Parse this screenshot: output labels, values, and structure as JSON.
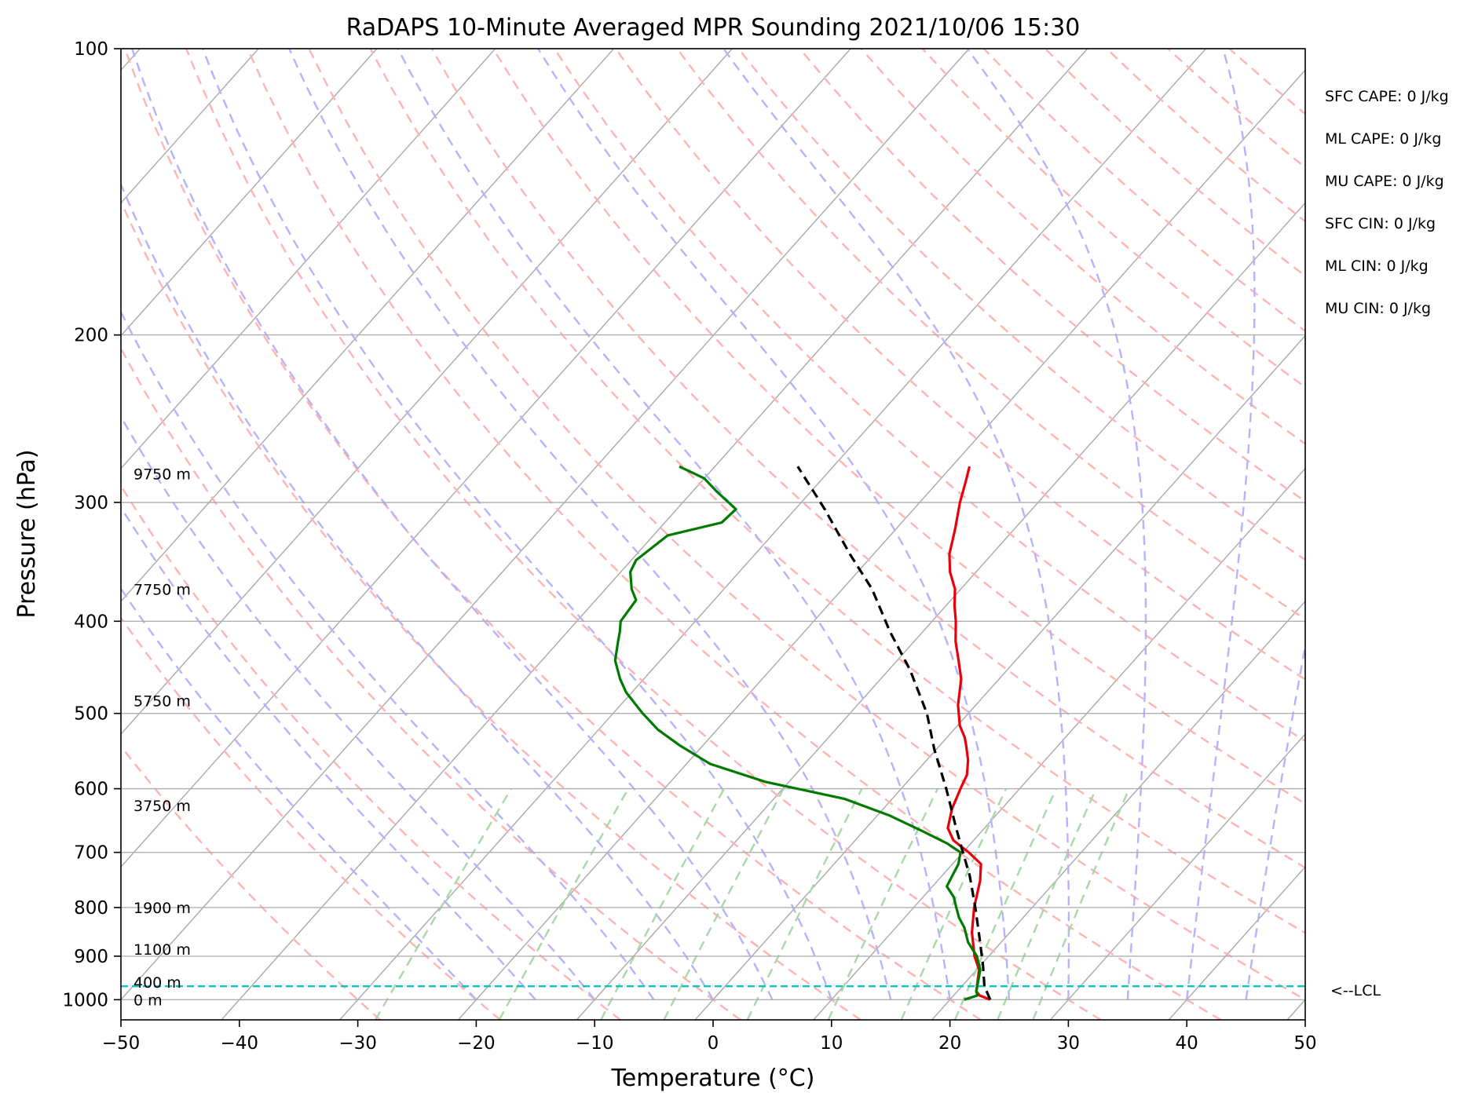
{
  "chart_data": {
    "type": "line",
    "title": "RaDAPS 10-Minute Averaged MPR Sounding 2021/10/06 15:30",
    "xlabel": "Temperature (°C)",
    "ylabel": "Pressure (hPa)",
    "xlim": [
      -50,
      50
    ],
    "ylim": [
      1050,
      100
    ],
    "y_scale": "log",
    "grid": true,
    "x_ticks": [
      -50,
      -40,
      -30,
      -20,
      -10,
      0,
      10,
      20,
      30,
      40,
      50
    ],
    "x_tick_labels": [
      "−50",
      "−40",
      "−30",
      "−20",
      "−10",
      "0",
      "10",
      "20",
      "30",
      "40",
      "50"
    ],
    "y_ticks": [
      1000,
      900,
      800,
      700,
      600,
      500,
      400,
      300,
      200,
      100
    ],
    "y_tick_labels": [
      "1000",
      "900",
      "800",
      "700",
      "600",
      "500",
      "400",
      "300",
      "200",
      "100"
    ],
    "colors": {
      "temperature": "#e8000b",
      "dewpoint": "#007a00",
      "parcel": "#000000",
      "isotherms": "#a9a9a9",
      "dry_adiabats": "#ffb3b3",
      "moist_adiabats": "#b3b3ff",
      "mixing_ratio": "#a8d8a8",
      "lcl": "#17bfbf"
    },
    "series": [
      {
        "style": "solid",
        "color": "#e8000b",
        "points": [
          [
            23.4,
            1000
          ],
          [
            22.2,
            990
          ],
          [
            21.6,
            980
          ],
          [
            20.2,
            930
          ],
          [
            18.8,
            900
          ],
          [
            16.8,
            850
          ],
          [
            15.1,
            800
          ],
          [
            13.6,
            750
          ],
          [
            12.4,
            720
          ],
          [
            10.5,
            700
          ],
          [
            8.3,
            680
          ],
          [
            6.9,
            660
          ],
          [
            5.8,
            630
          ],
          [
            5.0,
            600
          ],
          [
            4.5,
            580
          ],
          [
            3.5,
            560
          ],
          [
            2.2,
            540
          ],
          [
            1.5,
            530
          ],
          [
            0.2,
            515
          ],
          [
            -1.5,
            490
          ],
          [
            -3.2,
            460
          ],
          [
            -4.8,
            440
          ],
          [
            -6.5,
            420
          ],
          [
            -8.0,
            400
          ],
          [
            -9.3,
            385
          ],
          [
            -10.5,
            370
          ],
          [
            -12.2,
            355
          ],
          [
            -13.6,
            340
          ],
          [
            -15.0,
            320
          ],
          [
            -16.6,
            300
          ],
          [
            -17.7,
            285
          ],
          [
            -18.5,
            275
          ]
        ]
      },
      {
        "style": "solid",
        "color": "#007a00",
        "points": [
          [
            21.2,
            1000
          ],
          [
            22.0,
            990
          ],
          [
            21.6,
            980
          ],
          [
            20.3,
            930
          ],
          [
            19.0,
            900
          ],
          [
            17.2,
            870
          ],
          [
            15.8,
            840
          ],
          [
            14.6,
            820
          ],
          [
            13.6,
            800
          ],
          [
            12.6,
            780
          ],
          [
            11.2,
            760
          ],
          [
            10.5,
            720
          ],
          [
            9.8,
            700
          ],
          [
            8.0,
            685
          ],
          [
            5.0,
            665
          ],
          [
            1.0,
            640
          ],
          [
            -4.0,
            615
          ],
          [
            -12.0,
            590
          ],
          [
            -18.0,
            565
          ],
          [
            -22.0,
            540
          ],
          [
            -25.0,
            520
          ],
          [
            -27.5,
            500
          ],
          [
            -30.5,
            475
          ],
          [
            -32.0,
            460
          ],
          [
            -33.8,
            440
          ],
          [
            -35.0,
            420
          ],
          [
            -35.6,
            410
          ],
          [
            -36.3,
            400
          ],
          [
            -36.6,
            380
          ],
          [
            -37.8,
            370
          ],
          [
            -39.2,
            355
          ],
          [
            -39.6,
            345
          ],
          [
            -38.8,
            325
          ],
          [
            -35.2,
            315
          ],
          [
            -35.0,
            305
          ],
          [
            -38.0,
            292
          ],
          [
            -40.0,
            283
          ],
          [
            -43.0,
            275
          ]
        ]
      },
      {
        "style": "dashed",
        "color": "#000000",
        "points": [
          [
            23.4,
            1000
          ],
          [
            21.9,
            968
          ],
          [
            20.2,
            920
          ],
          [
            17.8,
            860
          ],
          [
            15.2,
            800
          ],
          [
            12.3,
            740
          ],
          [
            10.0,
            700
          ],
          [
            7.6,
            660
          ],
          [
            3.8,
            600
          ],
          [
            -0.2,
            545
          ],
          [
            -3.5,
            500
          ],
          [
            -8.2,
            450
          ],
          [
            -12.8,
            410
          ],
          [
            -17.5,
            370
          ],
          [
            -22.0,
            340
          ],
          [
            -27.5,
            305
          ],
          [
            -33.0,
            275
          ]
        ]
      }
    ],
    "lcl": {
      "pressure": 968,
      "label": "<--LCL"
    },
    "height_labels": [
      {
        "pressure": 1000,
        "text": "0 m"
      },
      {
        "pressure": 958,
        "text": "400 m"
      },
      {
        "pressure": 885,
        "text": "1100 m"
      },
      {
        "pressure": 800,
        "text": "1900 m"
      },
      {
        "pressure": 625,
        "text": "3750 m"
      },
      {
        "pressure": 485,
        "text": "5750 m"
      },
      {
        "pressure": 370,
        "text": "7750 m"
      },
      {
        "pressure": 280,
        "text": "9750 m"
      }
    ],
    "indices": [
      {
        "label": "SFC CAPE: 0 J/kg"
      },
      {
        "label": "ML CAPE: 0 J/kg"
      },
      {
        "label": "MU CAPE: 0 J/kg"
      },
      {
        "label": "SFC CIN: 0 J/kg"
      },
      {
        "label": "ML CIN: 0 J/kg"
      },
      {
        "label": "MU CIN: 0 J/kg"
      }
    ]
  }
}
